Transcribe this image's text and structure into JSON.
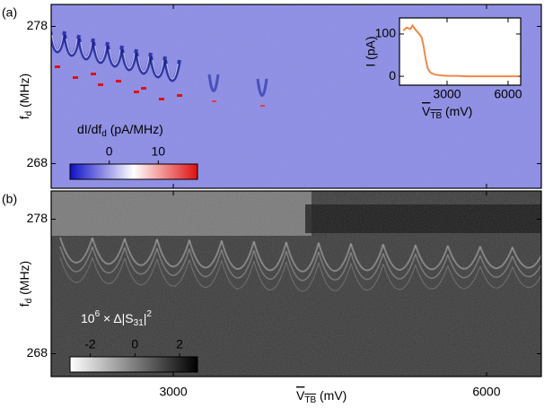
{
  "chart_data": [
    {
      "type": "heatmap",
      "panel_label": "(a)",
      "ylabel": [
        "f",
        "d",
        " (MHz)"
      ],
      "xlim": [
        1830,
        6525
      ],
      "ylim": [
        266.2,
        279.6
      ],
      "xticks": [
        3000,
        6000
      ],
      "yticks": [
        268,
        278
      ],
      "colorbar": {
        "label": [
          "dI/df",
          "d",
          " (pA/MHz)"
        ],
        "lim": [
          -8,
          18
        ],
        "ticks": [
          0,
          10
        ],
        "colors": [
          "#1010c8",
          "#ffffff",
          "#e01010"
        ]
      }
    },
    {
      "type": "line",
      "xlabel": [
        "V",
        "TB",
        " (mV)"
      ],
      "ylabel": "I (pA)",
      "x": [
        850,
        1000,
        1200,
        1300,
        1450,
        1600,
        1750,
        1850,
        1950,
        2050,
        2200,
        2400,
        2700,
        3000,
        3500,
        4000,
        5000,
        6000,
        6500
      ],
      "values": [
        108,
        115,
        112,
        120,
        110,
        102,
        92,
        70,
        40,
        18,
        8,
        4,
        2,
        1,
        1,
        0,
        0,
        0,
        0
      ],
      "color": "#f08848",
      "xlim": [
        660,
        6620
      ],
      "ylim": [
        -21,
        138
      ],
      "xticks": [
        3000,
        6000
      ],
      "yticks": [
        0,
        100
      ]
    },
    {
      "type": "heatmap",
      "panel_label": "(b)",
      "ylabel": [
        "f",
        "d",
        " (MHz)"
      ],
      "xlabel": [
        "V",
        "TB",
        " (mV)"
      ],
      "xlim": [
        1830,
        6525
      ],
      "ylim": [
        266.3,
        280.1
      ],
      "xticks": [
        3000,
        6000
      ],
      "yticks": [
        268,
        278
      ],
      "colorbar": {
        "label": [
          "10",
          "6",
          " × Δ|S",
          "31",
          "|",
          "2"
        ],
        "lim": [
          -2.9,
          2.8
        ],
        "ticks": [
          -2,
          0,
          2
        ],
        "colors": [
          "#ffffff",
          "#000000"
        ]
      }
    }
  ]
}
